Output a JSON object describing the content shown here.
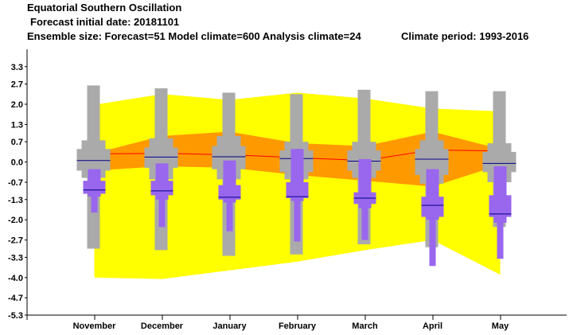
{
  "header": {
    "title": "Equatorial Southern Oscillation",
    "initial_date": "Forecast initial date: 20181101",
    "ensemble": "Ensemble size: Forecast=51 Model climate=600 Analysis climate=24",
    "climate_period": "Climate period: 1993-2016"
  },
  "colors": {
    "outer_band": "#ffff00",
    "inner_band": "#ff9900",
    "climate_box": "#aaaaaa",
    "forecast_box": "#9966ee",
    "median_line": "#000088",
    "mean_line": "#ff0000"
  },
  "chart_data": {
    "type": "box",
    "categories": [
      "November",
      "December",
      "January",
      "February",
      "March",
      "April",
      "May"
    ],
    "yticks": [
      "3.3",
      "2.7",
      "2.0",
      "1.3",
      "0.7",
      "0.0",
      "-0.7",
      "-1.3",
      "-2.0",
      "-2.7",
      "-3.3",
      "-4.0",
      "-4.7",
      "-5.3"
    ],
    "ylim": [
      -5.3,
      3.9
    ],
    "grid": false,
    "climate_band_outer": {
      "upper": [
        1.98,
        2.35,
        2.15,
        2.4,
        2.2,
        1.85,
        1.75
      ],
      "lower": [
        -4.0,
        -4.05,
        -3.75,
        -3.45,
        -3.05,
        -2.7,
        -3.9
      ]
    },
    "climate_band_inner": {
      "upper": [
        0.3,
        0.9,
        1.05,
        0.65,
        0.55,
        1.05,
        0.45
      ],
      "lower": [
        -0.3,
        -0.15,
        -0.2,
        -0.45,
        -0.65,
        -0.85,
        -0.1
      ]
    },
    "mean_line": [
      0.28,
      0.3,
      0.25,
      0.15,
      0.05,
      0.42,
      0.38
    ],
    "model_climate": [
      {
        "min": -3.0,
        "p10": -0.55,
        "p25": -0.3,
        "median": 0.05,
        "p75": 0.45,
        "p90": 0.75,
        "max": 2.65
      },
      {
        "min": -3.05,
        "p10": -0.6,
        "p25": -0.2,
        "median": 0.17,
        "p75": 0.5,
        "p90": 0.82,
        "max": 2.55
      },
      {
        "min": -3.25,
        "p10": -0.6,
        "p25": -0.25,
        "median": 0.18,
        "p75": 0.55,
        "p90": 0.9,
        "max": 2.4
      },
      {
        "min": -3.2,
        "p10": -0.6,
        "p25": -0.35,
        "median": 0.12,
        "p75": 0.4,
        "p90": 0.7,
        "max": 2.35
      },
      {
        "min": -2.85,
        "p10": -0.55,
        "p25": -0.3,
        "median": 0.03,
        "p75": 0.4,
        "p90": 0.7,
        "max": 2.5
      },
      {
        "min": -2.95,
        "p10": -0.75,
        "p25": -0.45,
        "median": 0.1,
        "p75": 0.45,
        "p90": 0.75,
        "max": 2.45
      },
      {
        "min": -2.25,
        "p10": -0.7,
        "p25": -0.35,
        "median": -0.05,
        "p75": 0.35,
        "p90": 0.65,
        "max": 2.45
      }
    ],
    "forecast": [
      {
        "min": -1.75,
        "p10": -1.2,
        "p25": -1.1,
        "median": -0.97,
        "p75": -0.65,
        "p90": -0.25,
        "max": -0.25
      },
      {
        "min": -2.25,
        "p10": -1.3,
        "p25": -1.15,
        "median": -1.0,
        "p75": -0.65,
        "p90": -0.05,
        "max": -0.05
      },
      {
        "min": -2.4,
        "p10": -1.4,
        "p25": -1.3,
        "median": -1.22,
        "p75": -0.8,
        "p90": 0.05,
        "max": 0.05
      },
      {
        "min": -2.75,
        "p10": -1.35,
        "p25": -1.25,
        "median": -1.2,
        "p75": -0.7,
        "p90": 0.45,
        "max": 0.45
      },
      {
        "min": -2.7,
        "p10": -1.6,
        "p25": -1.45,
        "median": -1.25,
        "p75": -1.05,
        "p90": 0.1,
        "max": 0.1
      },
      {
        "min": -3.6,
        "p10": -2.0,
        "p25": -1.9,
        "median": -1.5,
        "p75": -1.2,
        "p90": -0.25,
        "max": -0.25
      },
      {
        "min": -3.35,
        "p10": -2.1,
        "p25": -1.9,
        "median": -1.8,
        "p75": -1.15,
        "p90": -0.15,
        "max": -0.15
      }
    ]
  }
}
